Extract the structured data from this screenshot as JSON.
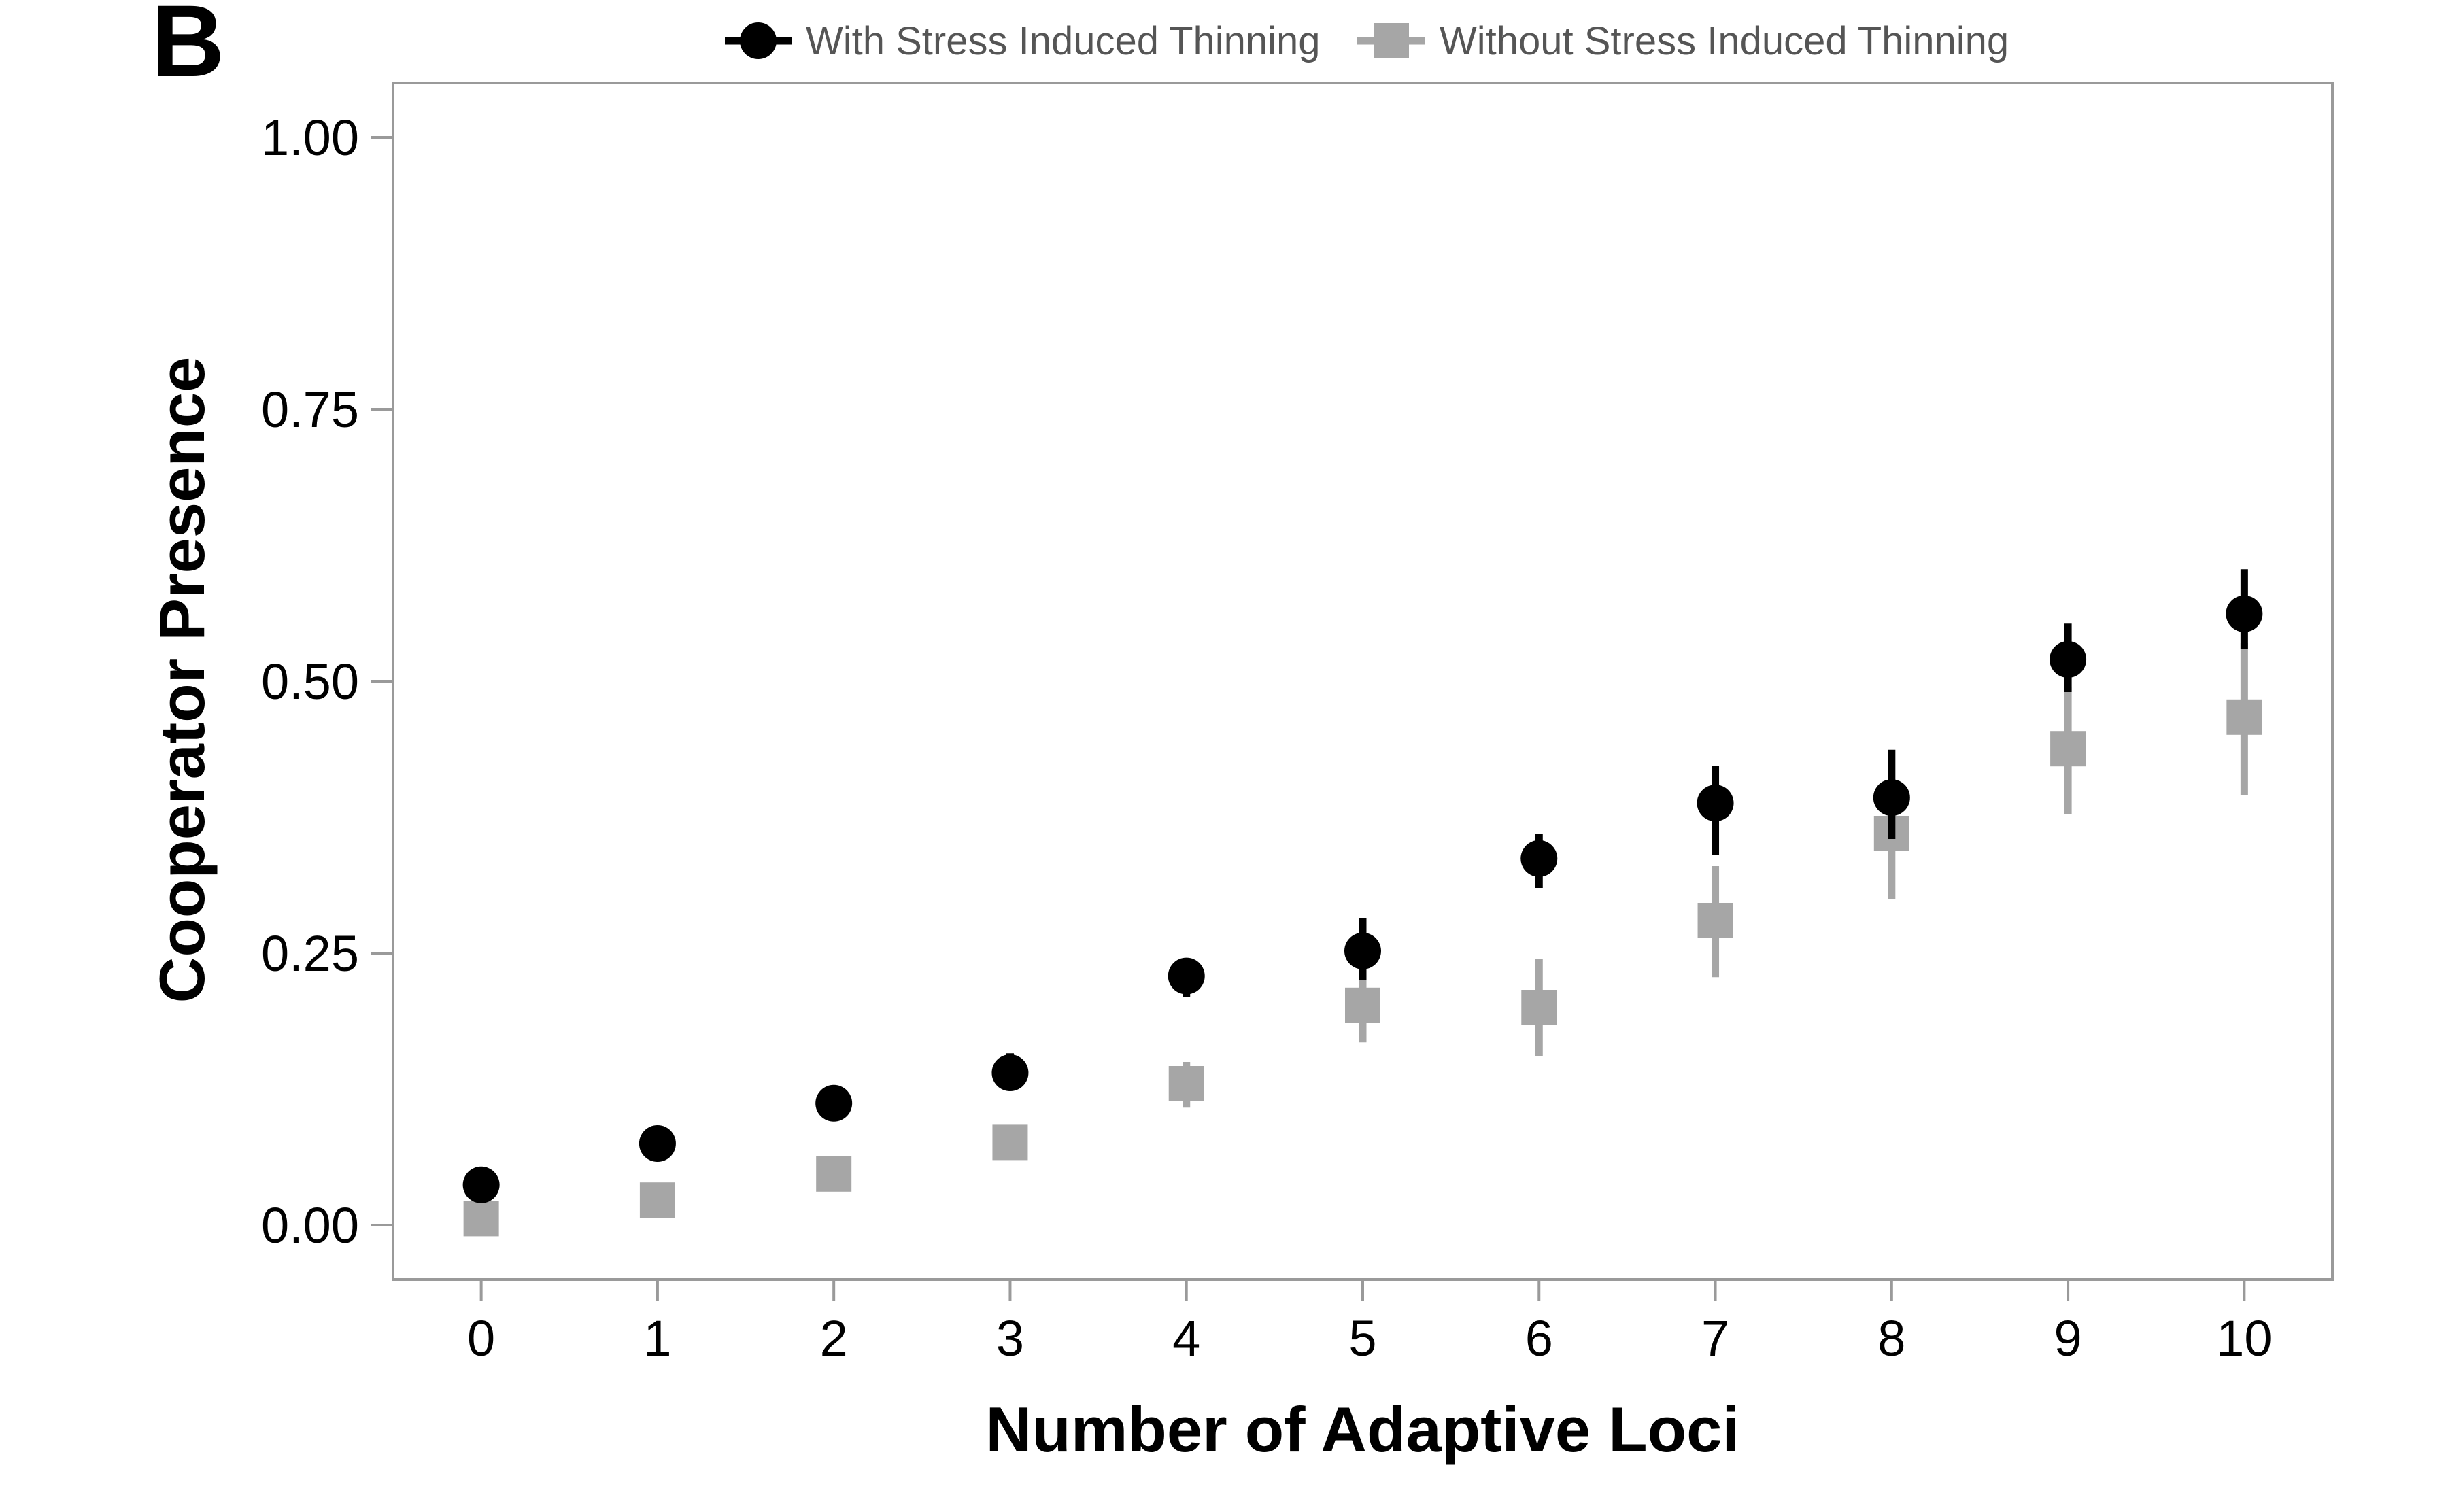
{
  "panel_label": "B",
  "colors": {
    "with_series": "#000000",
    "without_series": "#a6a6a6",
    "frame": "#9a9a9a",
    "legend_text": "#555555"
  },
  "chart_data": {
    "type": "scatter",
    "title": "",
    "xlabel": "Number of Adaptive Loci",
    "ylabel": "Cooperator Presence",
    "xlim": [
      -0.5,
      10.5
    ],
    "ylim": [
      -0.05,
      1.05
    ],
    "x": [
      0,
      1,
      2,
      3,
      4,
      5,
      6,
      7,
      8,
      9,
      10
    ],
    "x_tick_labels": [
      "0",
      "1",
      "2",
      "3",
      "4",
      "5",
      "6",
      "7",
      "8",
      "9",
      "10"
    ],
    "y_ticks": [
      0.0,
      0.25,
      0.5,
      0.75,
      1.0
    ],
    "y_tick_labels": [
      "0.00",
      "0.25",
      "0.50",
      "0.75",
      "1.00"
    ],
    "grid": false,
    "legend_position": "top",
    "series": [
      {
        "name": "With Stress Induced Thinning",
        "marker": "circle",
        "color": "#000000",
        "values": [
          0.037,
          0.075,
          0.112,
          0.14,
          0.229,
          0.252,
          0.337,
          0.388,
          0.393,
          0.52,
          0.562
        ],
        "err_low": [
          0.03,
          0.068,
          0.104,
          0.125,
          0.21,
          0.225,
          0.31,
          0.34,
          0.355,
          0.49,
          0.53
        ],
        "err_high": [
          0.045,
          0.082,
          0.12,
          0.158,
          0.245,
          0.282,
          0.36,
          0.422,
          0.437,
          0.553,
          0.603
        ]
      },
      {
        "name": "Without Stress Induced Thinning",
        "marker": "square",
        "color": "#a6a6a6",
        "values": [
          0.006,
          0.023,
          0.047,
          0.076,
          0.13,
          0.202,
          0.2,
          0.28,
          0.36,
          0.438,
          0.467
        ],
        "err_low": [
          0.0,
          0.016,
          0.04,
          0.067,
          0.108,
          0.168,
          0.155,
          0.228,
          0.3,
          0.378,
          0.395
        ],
        "err_high": [
          0.012,
          0.03,
          0.055,
          0.085,
          0.15,
          0.235,
          0.245,
          0.33,
          0.41,
          0.495,
          0.535
        ]
      }
    ]
  }
}
